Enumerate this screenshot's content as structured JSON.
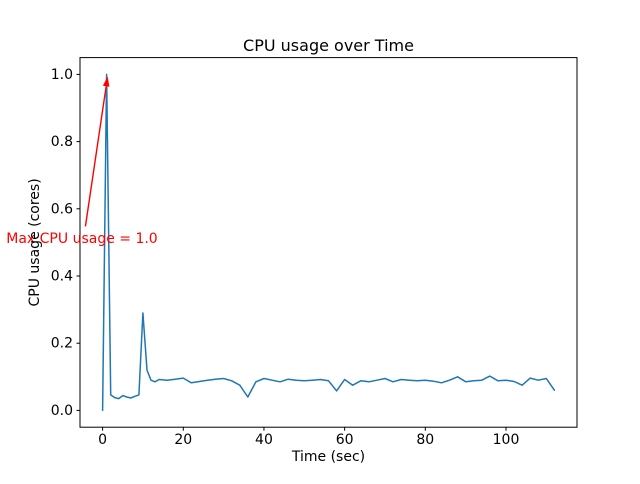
{
  "figure": {
    "background": "#ffffff",
    "text_color": "#000000",
    "spine_color": "#000000"
  },
  "chart_data": {
    "type": "line",
    "title": "CPU usage over Time",
    "xlabel": "Time (sec)",
    "ylabel": "CPU usage (cores)",
    "xlim": [
      -5.6,
      117.6
    ],
    "ylim": [
      -0.05,
      1.05
    ],
    "xticks": [
      0,
      20,
      40,
      60,
      80,
      100
    ],
    "yticks": [
      0.0,
      0.2,
      0.4,
      0.6,
      0.8,
      1.0
    ],
    "grid": false,
    "legend": null,
    "series": [
      {
        "name": "CPU usage",
        "color": "#1f77b4",
        "x": [
          0,
          1,
          2,
          3,
          4,
          5,
          6,
          7,
          8,
          9,
          10,
          11,
          12,
          13,
          14,
          16,
          18,
          20,
          22,
          24,
          26,
          28,
          30,
          32,
          34,
          36,
          38,
          40,
          42,
          44,
          46,
          48,
          50,
          52,
          54,
          56,
          58,
          60,
          62,
          64,
          66,
          68,
          70,
          72,
          74,
          76,
          78,
          80,
          82,
          84,
          86,
          88,
          90,
          92,
          94,
          96,
          98,
          100,
          102,
          104,
          106,
          108,
          110,
          112
        ],
        "y": [
          0.0,
          1.0,
          0.046,
          0.038,
          0.035,
          0.044,
          0.04,
          0.037,
          0.042,
          0.046,
          0.29,
          0.12,
          0.09,
          0.085,
          0.092,
          0.09,
          0.093,
          0.096,
          0.082,
          0.086,
          0.09,
          0.093,
          0.095,
          0.088,
          0.075,
          0.04,
          0.085,
          0.095,
          0.09,
          0.085,
          0.093,
          0.09,
          0.088,
          0.09,
          0.092,
          0.088,
          0.058,
          0.092,
          0.075,
          0.088,
          0.085,
          0.09,
          0.095,
          0.085,
          0.092,
          0.09,
          0.088,
          0.09,
          0.087,
          0.082,
          0.09,
          0.1,
          0.085,
          0.088,
          0.09,
          0.102,
          0.088,
          0.09,
          0.086,
          0.075,
          0.096,
          0.09,
          0.095,
          0.06
        ]
      }
    ],
    "annotation": {
      "text": "Max CPU usage = 1.0",
      "color": "#ff0000",
      "xy": [
        1,
        1.0
      ],
      "xytext": [
        -5,
        0.5
      ]
    }
  }
}
